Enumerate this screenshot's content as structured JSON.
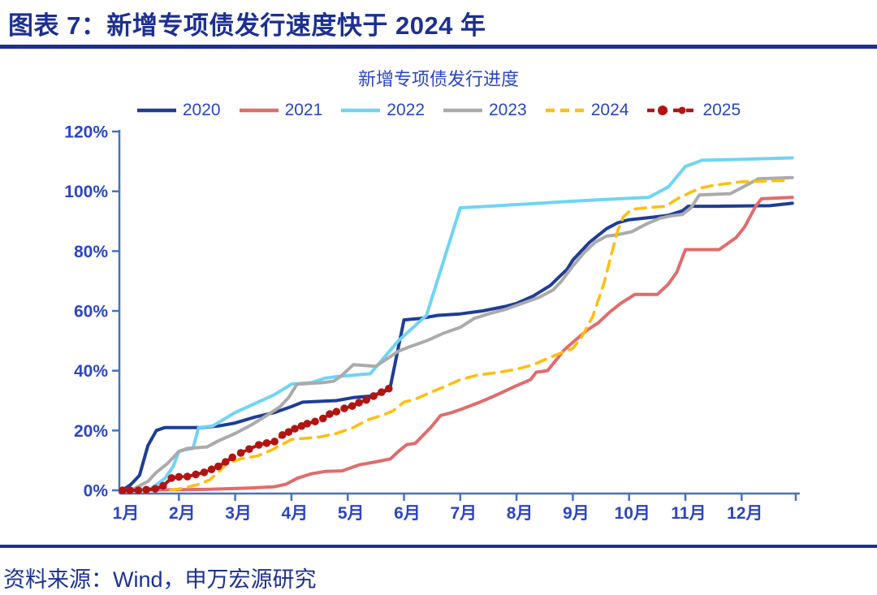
{
  "header": {
    "title": "图表 7：新增专项债发行速度快于 2024 年"
  },
  "source": {
    "text": "资料来源：Wind，申万宏源研究"
  },
  "colors": {
    "title_blue": "#1c2f93",
    "label_blue": "#2a46c4",
    "axis_blue": "#4472c4",
    "background": "#ffffff"
  },
  "chart_data": {
    "type": "line",
    "title": "新增专项债发行进度",
    "grid": false,
    "legend_position": "top",
    "x_axis": {
      "unit": "month",
      "range": [
        1,
        13
      ],
      "tick_labels": [
        "1月",
        "2月",
        "3月",
        "4月",
        "5月",
        "6月",
        "7月",
        "8月",
        "9月",
        "10月",
        "11月",
        "12月"
      ]
    },
    "y_axis": {
      "unit": "percent",
      "range": [
        0,
        120
      ],
      "tick_labels": [
        "0%",
        "20%",
        "40%",
        "60%",
        "80%",
        "100%",
        "120%"
      ]
    },
    "series": [
      {
        "name": "2020",
        "color": "#1e3d96",
        "style": "solid",
        "points": [
          [
            1,
            0
          ],
          [
            1.15,
            2
          ],
          [
            1.3,
            5
          ],
          [
            1.45,
            15
          ],
          [
            1.6,
            20
          ],
          [
            1.75,
            21
          ],
          [
            2.4,
            21
          ],
          [
            2.7,
            21.5
          ],
          [
            3,
            22.5
          ],
          [
            3.35,
            24.5
          ],
          [
            3.7,
            26
          ],
          [
            4,
            28
          ],
          [
            4.2,
            29.5
          ],
          [
            4.8,
            30
          ],
          [
            5.1,
            31
          ],
          [
            5.4,
            31.5
          ],
          [
            5.65,
            33
          ],
          [
            5.75,
            34
          ],
          [
            6,
            57
          ],
          [
            6.3,
            57.5
          ],
          [
            6.6,
            58.5
          ],
          [
            7,
            59
          ],
          [
            7.4,
            60
          ],
          [
            7.8,
            61.5
          ],
          [
            8,
            62.5
          ],
          [
            8.3,
            65
          ],
          [
            8.6,
            68.5
          ],
          [
            8.9,
            74
          ],
          [
            9,
            77
          ],
          [
            9.3,
            83
          ],
          [
            9.6,
            87.5
          ],
          [
            9.8,
            89.5
          ],
          [
            10,
            90.5
          ],
          [
            10.4,
            91.3
          ],
          [
            10.7,
            92
          ],
          [
            10.95,
            93.5
          ],
          [
            11.05,
            95
          ],
          [
            11.6,
            95
          ],
          [
            12.5,
            95.2
          ],
          [
            12.9,
            96
          ]
        ]
      },
      {
        "name": "2021",
        "color": "#e06c6c",
        "style": "solid",
        "points": [
          [
            1,
            0
          ],
          [
            2.5,
            0.3
          ],
          [
            3.3,
            0.8
          ],
          [
            3.7,
            1.2
          ],
          [
            3.9,
            2
          ],
          [
            4.1,
            4
          ],
          [
            4.35,
            5.5
          ],
          [
            4.6,
            6.3
          ],
          [
            4.9,
            6.5
          ],
          [
            5.2,
            8.5
          ],
          [
            5.5,
            9.5
          ],
          [
            5.76,
            10.5
          ],
          [
            5.9,
            13
          ],
          [
            6.05,
            15.3
          ],
          [
            6.2,
            15.7
          ],
          [
            6.5,
            21.5
          ],
          [
            6.65,
            25
          ],
          [
            6.85,
            26
          ],
          [
            7,
            27
          ],
          [
            7.35,
            29.5
          ],
          [
            7.6,
            31.5
          ],
          [
            8,
            35
          ],
          [
            8.25,
            37
          ],
          [
            8.35,
            39.5
          ],
          [
            8.55,
            40
          ],
          [
            8.85,
            47
          ],
          [
            9,
            49.5
          ],
          [
            9.25,
            53.5
          ],
          [
            9.45,
            56
          ],
          [
            9.65,
            59.5
          ],
          [
            9.85,
            62.5
          ],
          [
            10.1,
            65.5
          ],
          [
            10.5,
            65.5
          ],
          [
            10.7,
            69
          ],
          [
            10.85,
            73
          ],
          [
            11,
            80.5
          ],
          [
            11.6,
            80.5
          ],
          [
            11.9,
            84.5
          ],
          [
            12.05,
            88
          ],
          [
            12.25,
            95
          ],
          [
            12.35,
            97.5
          ],
          [
            12.9,
            98
          ]
        ]
      },
      {
        "name": "2022",
        "color": "#70d4f5",
        "style": "solid",
        "points": [
          [
            1,
            0
          ],
          [
            1.5,
            0.5
          ],
          [
            1.75,
            4
          ],
          [
            1.9,
            8
          ],
          [
            2,
            13
          ],
          [
            2.1,
            13.5
          ],
          [
            2.25,
            14
          ],
          [
            2.35,
            21
          ],
          [
            2.6,
            21.5
          ],
          [
            3,
            26
          ],
          [
            3.35,
            29
          ],
          [
            3.7,
            32
          ],
          [
            4,
            35.5
          ],
          [
            4.35,
            36
          ],
          [
            4.6,
            37.5
          ],
          [
            4.8,
            38
          ],
          [
            5.1,
            38.5
          ],
          [
            5.4,
            39
          ],
          [
            5.9,
            50
          ],
          [
            6.4,
            58.5
          ],
          [
            7,
            94.5
          ],
          [
            7.5,
            95
          ],
          [
            8.2,
            95.8
          ],
          [
            8.9,
            96.6
          ],
          [
            9.5,
            97.2
          ],
          [
            10.35,
            98
          ],
          [
            10.7,
            101.5
          ],
          [
            11,
            108.3
          ],
          [
            11.3,
            110.4
          ],
          [
            12,
            110.7
          ],
          [
            12.9,
            111.2
          ]
        ]
      },
      {
        "name": "2023",
        "color": "#ababab",
        "style": "solid",
        "points": [
          [
            1,
            0
          ],
          [
            1.2,
            0.5
          ],
          [
            1.45,
            3
          ],
          [
            1.6,
            6
          ],
          [
            1.8,
            9
          ],
          [
            2,
            13
          ],
          [
            2.15,
            14
          ],
          [
            2.5,
            14.5
          ],
          [
            2.7,
            16.5
          ],
          [
            3,
            19
          ],
          [
            3.3,
            22
          ],
          [
            3.6,
            25.5
          ],
          [
            3.8,
            28
          ],
          [
            3.95,
            31
          ],
          [
            4.1,
            35.5
          ],
          [
            4.55,
            36
          ],
          [
            4.75,
            36.5
          ],
          [
            4.9,
            38.5
          ],
          [
            5.1,
            42
          ],
          [
            5.5,
            41.5
          ],
          [
            5.9,
            46.5
          ],
          [
            6.1,
            48
          ],
          [
            6.4,
            50
          ],
          [
            6.7,
            52.5
          ],
          [
            7,
            54.5
          ],
          [
            7.25,
            57.5
          ],
          [
            7.5,
            59
          ],
          [
            7.8,
            60.5
          ],
          [
            8.1,
            62.5
          ],
          [
            8.4,
            64.5
          ],
          [
            8.65,
            67
          ],
          [
            8.8,
            70
          ],
          [
            9,
            75
          ],
          [
            9.2,
            79.5
          ],
          [
            9.4,
            83
          ],
          [
            9.6,
            85
          ],
          [
            9.8,
            85.5
          ],
          [
            10.05,
            86.5
          ],
          [
            10.3,
            89
          ],
          [
            10.55,
            91
          ],
          [
            10.75,
            91.8
          ],
          [
            10.95,
            92.3
          ],
          [
            11.1,
            94.5
          ],
          [
            11.25,
            98.8
          ],
          [
            11.8,
            99.2
          ],
          [
            12.3,
            104.2
          ],
          [
            12.9,
            104.6
          ]
        ]
      },
      {
        "name": "2024",
        "color": "#fdbf11",
        "style": "dashed",
        "points": [
          [
            1.85,
            0
          ],
          [
            2.1,
            0.8
          ],
          [
            2.35,
            2
          ],
          [
            2.55,
            3.5
          ],
          [
            2.7,
            6
          ],
          [
            2.85,
            9
          ],
          [
            3.1,
            10.5
          ],
          [
            3.4,
            11.5
          ],
          [
            3.65,
            13.5
          ],
          [
            4,
            17
          ],
          [
            4.5,
            17.8
          ],
          [
            4.8,
            19
          ],
          [
            5.1,
            21
          ],
          [
            5.35,
            23.5
          ],
          [
            5.6,
            25
          ],
          [
            5.8,
            26.5
          ],
          [
            6,
            29.5
          ],
          [
            6.2,
            30.5
          ],
          [
            6.5,
            33
          ],
          [
            6.7,
            34.5
          ],
          [
            7,
            37
          ],
          [
            7.3,
            38.5
          ],
          [
            7.7,
            39.5
          ],
          [
            8,
            40.5
          ],
          [
            8.3,
            42
          ],
          [
            8.6,
            44.5
          ],
          [
            8.8,
            46
          ],
          [
            9,
            47.5
          ],
          [
            9.15,
            51
          ],
          [
            9.35,
            58
          ],
          [
            9.55,
            69
          ],
          [
            9.7,
            80
          ],
          [
            9.8,
            87
          ],
          [
            9.9,
            91.5
          ],
          [
            10.05,
            94
          ],
          [
            10.3,
            94.5
          ],
          [
            10.65,
            95
          ],
          [
            10.9,
            98
          ],
          [
            11.25,
            101
          ],
          [
            11.5,
            102
          ],
          [
            12,
            103.2
          ],
          [
            12.85,
            103.7
          ]
        ]
      },
      {
        "name": "2025",
        "color": "#b21511",
        "style": "dashed-dot-marker",
        "points": [
          [
            1,
            0
          ],
          [
            1.13,
            0
          ],
          [
            1.28,
            0
          ],
          [
            1.42,
            0.2
          ],
          [
            1.58,
            0.5
          ],
          [
            1.72,
            1.5
          ],
          [
            1.87,
            4.1
          ],
          [
            2,
            4.5
          ],
          [
            2.15,
            4.6
          ],
          [
            2.3,
            5.3
          ],
          [
            2.45,
            6
          ],
          [
            2.58,
            7
          ],
          [
            2.7,
            8
          ],
          [
            2.83,
            9.5
          ],
          [
            2.95,
            11
          ],
          [
            3.1,
            12.5
          ],
          [
            3.25,
            13.8
          ],
          [
            3.42,
            15.2
          ],
          [
            3.56,
            15.8
          ],
          [
            3.7,
            16.3
          ],
          [
            3.84,
            18.5
          ],
          [
            3.95,
            19.5
          ],
          [
            4.06,
            20.6
          ],
          [
            4.18,
            21.5
          ],
          [
            4.28,
            22.3
          ],
          [
            4.42,
            23
          ],
          [
            4.56,
            24
          ],
          [
            4.68,
            25.5
          ],
          [
            4.8,
            26.3
          ],
          [
            4.94,
            27.4
          ],
          [
            5.08,
            28.2
          ],
          [
            5.2,
            29.3
          ],
          [
            5.33,
            30.2
          ],
          [
            5.46,
            31.5
          ],
          [
            5.6,
            32.8
          ],
          [
            5.73,
            34
          ]
        ]
      }
    ]
  }
}
